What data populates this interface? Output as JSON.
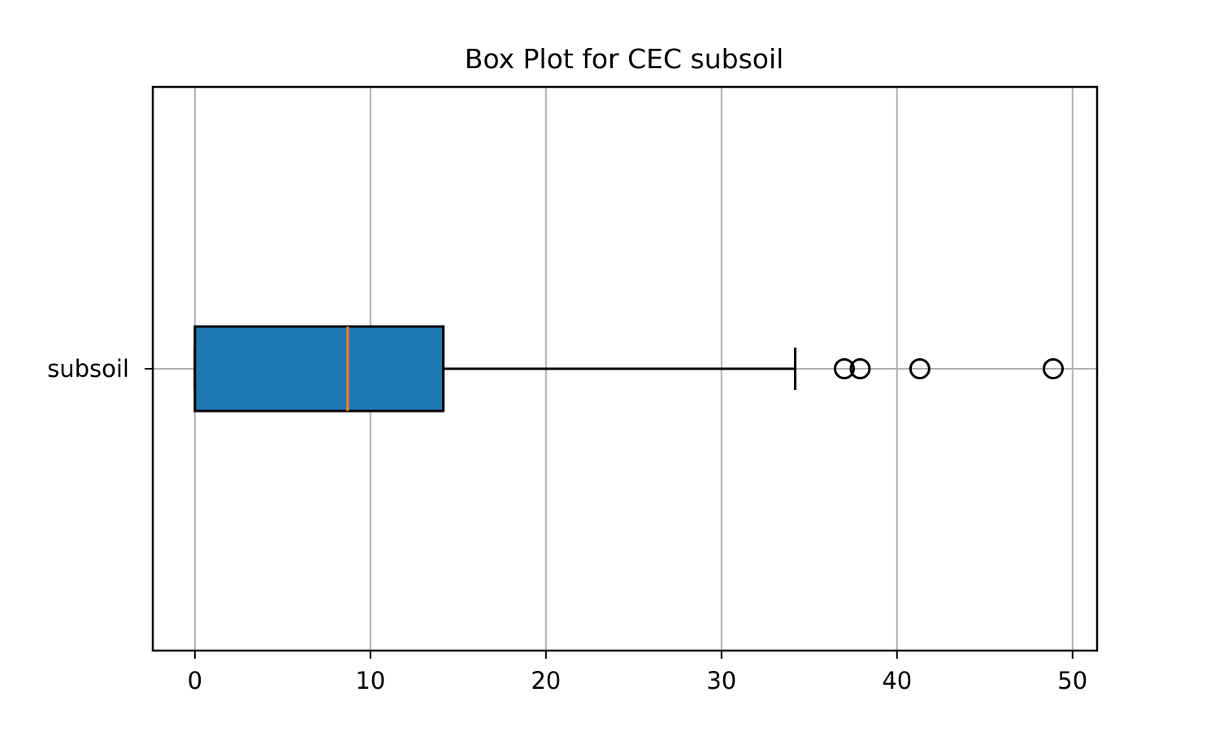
{
  "chart_data": {
    "type": "boxplot",
    "orientation": "horizontal",
    "title": "Box Plot for CEC subsoil",
    "categories": [
      "subsoil"
    ],
    "xlim": [
      -2.4,
      51.4
    ],
    "xticks": [
      0,
      10,
      20,
      30,
      40,
      50
    ],
    "grid": true,
    "boxes": [
      {
        "label": "subsoil",
        "whisker_low": 0,
        "q1": 0,
        "median": 8.7,
        "q3": 14.15,
        "whisker_high": 34.2,
        "outliers": [
          37.0,
          37.9,
          41.3,
          48.9
        ]
      }
    ],
    "colors": {
      "box_fill": "#1f77b4",
      "median": "#ff7f0e",
      "grid": "#b0b0b0",
      "edge": "#000000"
    }
  }
}
